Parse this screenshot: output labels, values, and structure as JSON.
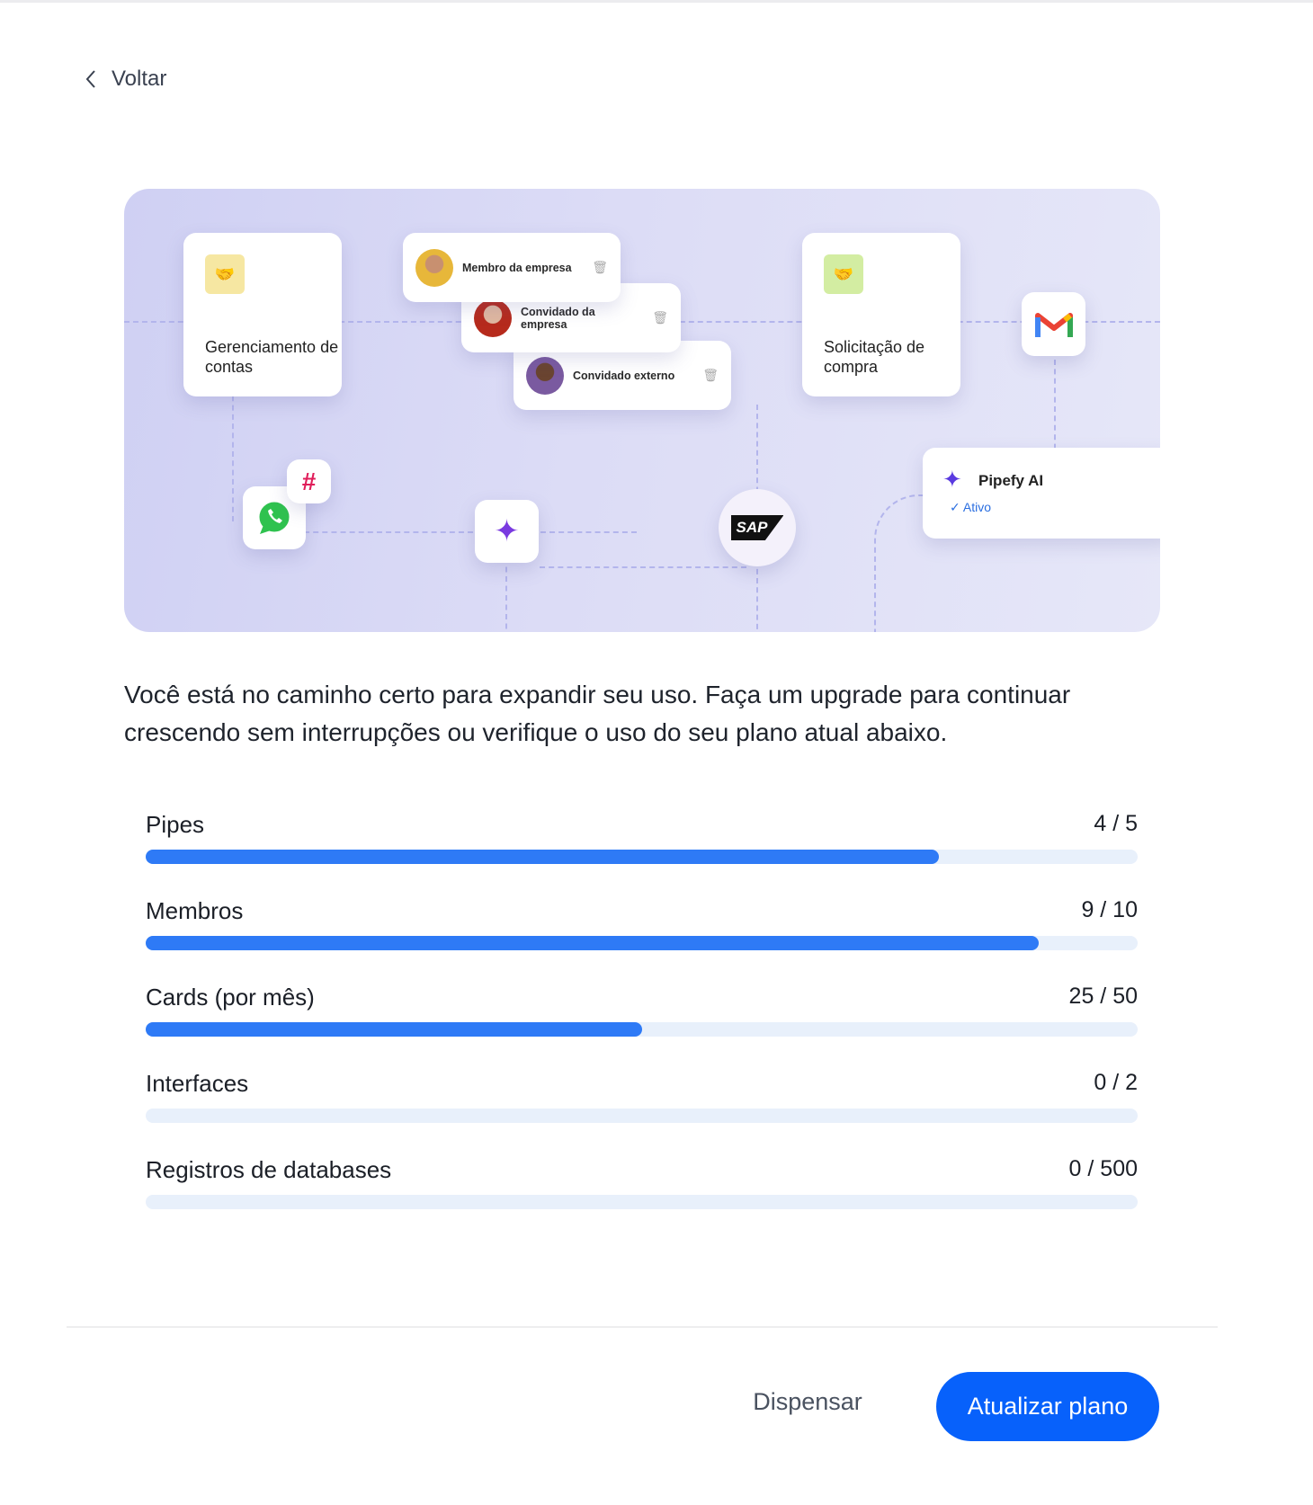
{
  "nav": {
    "back_label": "Voltar"
  },
  "illustration": {
    "card_accounts": "Gerenciamento de contas",
    "card_purchase": "Solicitação de compra",
    "members": [
      {
        "label": "Membro da empresa"
      },
      {
        "label": "Convidado da empresa"
      },
      {
        "label": "Convidado externo"
      }
    ],
    "ai_card": {
      "title": "Pipefy AI",
      "status": "Ativo"
    },
    "sap_label": "SAP",
    "integrations": [
      "whatsapp-icon",
      "slack-icon",
      "gmail-icon",
      "sap-logo",
      "sparkle-icon"
    ]
  },
  "message": "Você está no caminho certo para expandir seu uso. Faça um upgrade para continuar crescendo sem interrupções ou verifique o uso do seu plano atual abaixo.",
  "usage": [
    {
      "label": "Pipes",
      "value": "4 / 5",
      "fraction": 0.8
    },
    {
      "label": "Membros",
      "value": "9 / 10",
      "fraction": 0.9
    },
    {
      "label": "Cards (por mês)",
      "value": "25 / 50",
      "fraction": 0.5
    },
    {
      "label": "Interfaces",
      "value": "0 / 2",
      "fraction": 0
    },
    {
      "label": "Registros de databases",
      "value": "0 / 500",
      "fraction": 0
    }
  ],
  "footer": {
    "dismiss_label": "Dispensar",
    "upgrade_label": "Atualizar plano"
  },
  "colors": {
    "primary": "#0761fb",
    "progress": "#2e7af6",
    "track": "#e8f0fb"
  }
}
